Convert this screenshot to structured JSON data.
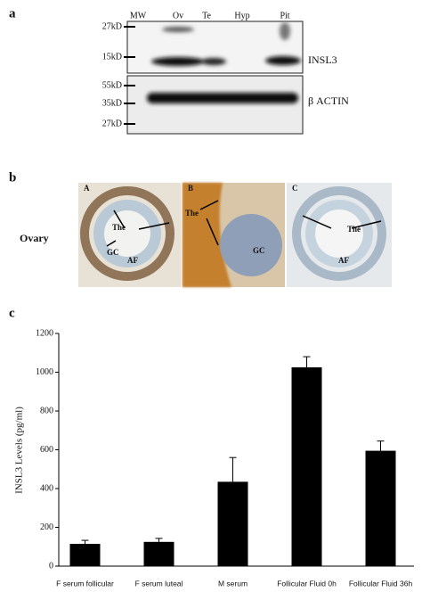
{
  "panel_a": {
    "label": "a",
    "lanes": [
      "MW",
      "Ov",
      "Te",
      "Hyp",
      "Pit"
    ],
    "markers": [
      "27kD",
      "15kD",
      "55kD",
      "35kD",
      "27kD"
    ],
    "proteins": [
      "INSL3",
      "β ACTIN"
    ]
  },
  "panel_b": {
    "label": "b",
    "row_label": "Ovary",
    "images": [
      {
        "letter": "A",
        "labels": [
          "The",
          "GC",
          "AF"
        ]
      },
      {
        "letter": "B",
        "labels": [
          "The",
          "GC"
        ]
      },
      {
        "letter": "C",
        "labels": [
          "The",
          "AF"
        ]
      }
    ]
  },
  "chart_data": {
    "type": "bar",
    "panel_label": "c",
    "y_label": "INSL3 Levels (pg/ml)",
    "categories": [
      "F serum follicular",
      "F serum luteal",
      "M serum",
      "Follicular Fluid 0h",
      "Follicular Fluid 36h"
    ],
    "values": [
      115,
      125,
      435,
      1025,
      595
    ],
    "errors": [
      18,
      18,
      125,
      55,
      50
    ],
    "color": "#000000",
    "ylim": [
      0,
      1200
    ],
    "yticks": [
      0,
      200,
      400,
      600,
      800,
      1000,
      1200
    ]
  }
}
